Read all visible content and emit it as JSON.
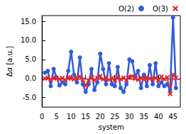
{
  "chart_data": {
    "type": "line",
    "x_label": "system",
    "y_label": "Δα [a.u.]",
    "xlim": [
      0,
      47.5
    ],
    "xticks": [
      0,
      5,
      10,
      15,
      20,
      25,
      30,
      35,
      40,
      45
    ],
    "ylim": [
      -7.5,
      16.5
    ],
    "yticks": [
      {
        "value": -5,
        "label": "-5.0"
      },
      {
        "value": 0,
        "label": "0.0"
      },
      {
        "value": 5,
        "label": "5.0"
      },
      {
        "value": 10,
        "label": "10.0"
      },
      {
        "value": 15,
        "label": "15.0"
      }
    ],
    "grid": false,
    "legend": "top-right",
    "x": [
      1,
      2,
      3,
      4,
      5,
      6,
      7,
      8,
      9,
      10,
      11,
      12,
      13,
      14,
      15,
      16,
      17,
      18,
      19,
      20,
      21,
      22,
      23,
      24,
      25,
      26,
      27,
      28,
      29,
      30,
      31,
      32,
      33,
      34,
      35,
      36,
      37,
      38,
      39,
      40,
      41,
      42,
      43,
      44,
      45,
      46
    ],
    "series": [
      {
        "name": "O(2)",
        "color": "#2f5bdc",
        "marker": "circle",
        "line_style": "solid",
        "values": [
          1.5,
          2.0,
          -2.0,
          2.5,
          0.3,
          -1.8,
          -1.0,
          -1.5,
          2.0,
          7.0,
          1.0,
          -1.0,
          5.5,
          -1.5,
          -3.5,
          -1.5,
          2.5,
          -3.0,
          -1.0,
          6.5,
          2.5,
          -1.5,
          4.0,
          -1.5,
          -2.0,
          3.0,
          -2.5,
          -3.5,
          -1.5,
          5.0,
          4.5,
          0.5,
          2.0,
          -2.5,
          1.0,
          -2.0,
          3.5,
          -1.5,
          4.0,
          -2.0,
          -1.0,
          -2.0,
          -1.5,
          -3.0,
          16.0,
          -2.5
        ]
      },
      {
        "name": "O(3)",
        "color": "#e8262a",
        "marker": "cross",
        "line_style": "solid",
        "values": [
          0.0,
          0.2,
          -0.3,
          0.3,
          0.0,
          -0.2,
          0.1,
          -0.4,
          0.3,
          0.0,
          -0.2,
          0.2,
          0.5,
          -0.3,
          -1.8,
          -0.5,
          0.3,
          -0.4,
          0.2,
          0.6,
          -0.2,
          0.3,
          -0.3,
          0.1,
          -0.5,
          0.4,
          -0.2,
          0.2,
          -0.4,
          0.3,
          0.6,
          0.0,
          -0.3,
          0.2,
          -0.2,
          0.3,
          0.0,
          -0.3,
          0.2,
          -0.4,
          0.5,
          -0.2,
          0.3,
          -4.0,
          1.0,
          0.2
        ]
      }
    ]
  }
}
